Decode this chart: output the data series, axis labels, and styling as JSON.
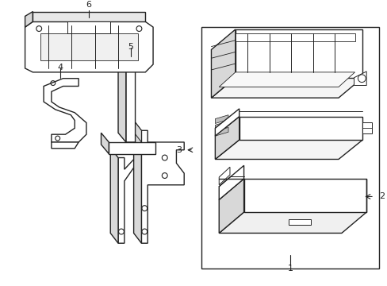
{
  "bg_color": "#ffffff",
  "line_color": "#222222",
  "lw": 1.0,
  "figsize": [
    4.89,
    3.6
  ],
  "dpi": 100
}
